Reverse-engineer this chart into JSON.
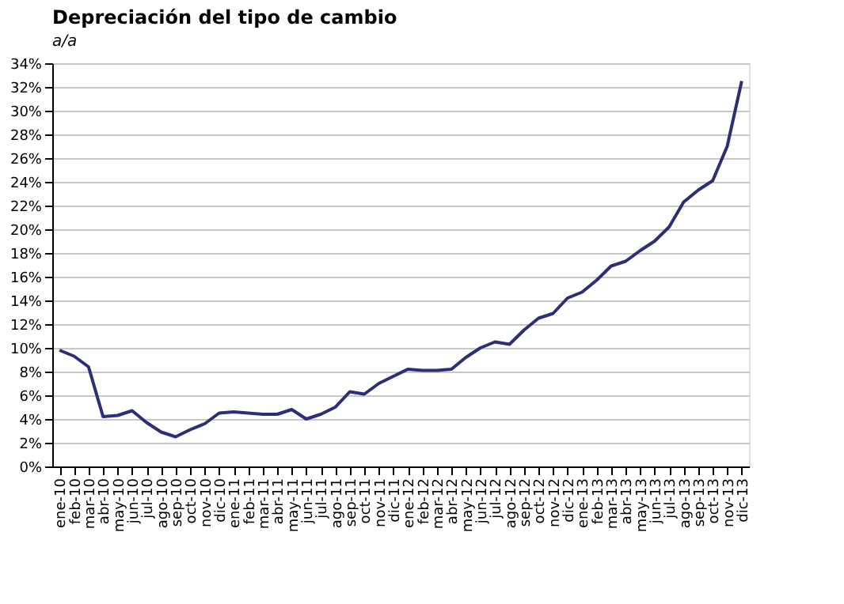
{
  "chart_data": {
    "type": "line",
    "title": "Depreciación del tipo de cambio",
    "subtitle": "a/a",
    "categories": [
      "ene-10",
      "feb-10",
      "mar-10",
      "abr-10",
      "may-10",
      "jun-10",
      "jul-10",
      "ago-10",
      "sep-10",
      "oct-10",
      "nov-10",
      "dic-10",
      "ene-11",
      "feb-11",
      "mar-11",
      "abr-11",
      "may-11",
      "jun-11",
      "jul-11",
      "ago-11",
      "sep-11",
      "oct-11",
      "nov-11",
      "dic-11",
      "ene-12",
      "feb-12",
      "mar-12",
      "abr-12",
      "may-12",
      "jun-12",
      "jul-12",
      "ago-12",
      "sep-12",
      "oct-12",
      "nov-12",
      "dic-12",
      "ene-13",
      "feb-13",
      "mar-13",
      "abr-13",
      "may-13",
      "jun-13",
      "jul-13",
      "ago-13",
      "sep-13",
      "oct-13",
      "nov-13",
      "dic-13"
    ],
    "series": [
      {
        "color": "#2e2e78",
        "values": [
          9.8,
          9.3,
          8.4,
          4.2,
          4.3,
          4.7,
          3.7,
          2.9,
          2.5,
          3.1,
          3.6,
          4.5,
          4.6,
          4.5,
          4.4,
          4.4,
          4.8,
          4.0,
          4.4,
          5.0,
          6.3,
          6.1,
          7.0,
          7.6,
          8.2,
          8.1,
          8.1,
          8.2,
          9.2,
          10.0,
          10.5,
          10.3,
          11.5,
          12.5,
          12.9,
          14.2,
          14.7,
          15.7,
          16.9,
          17.3,
          18.2,
          19.0,
          20.2,
          22.3,
          23.3,
          24.1,
          27.0,
          32.5
        ]
      }
    ],
    "ylim": [
      0,
      34
    ],
    "yticks": [
      {
        "value": 0,
        "label": "0%"
      },
      {
        "value": 2,
        "label": "2%"
      },
      {
        "value": 4,
        "label": "4%"
      },
      {
        "value": 6,
        "label": "6%"
      },
      {
        "value": 8,
        "label": "8%"
      },
      {
        "value": 10,
        "label": "10%"
      },
      {
        "value": 12,
        "label": "12%"
      },
      {
        "value": 14,
        "label": "14%"
      },
      {
        "value": 16,
        "label": "16%"
      },
      {
        "value": 18,
        "label": "18%"
      },
      {
        "value": 20,
        "label": "20%"
      },
      {
        "value": 22,
        "label": "22%"
      },
      {
        "value": 24,
        "label": "24%"
      },
      {
        "value": 26,
        "label": "26%"
      },
      {
        "value": 28,
        "label": "28%"
      },
      {
        "value": 30,
        "label": "30%"
      },
      {
        "value": 32,
        "label": "32%"
      },
      {
        "value": 34,
        "label": "34%"
      }
    ],
    "grid": "y",
    "legend": false,
    "marker": "none",
    "line_style": "solid"
  }
}
